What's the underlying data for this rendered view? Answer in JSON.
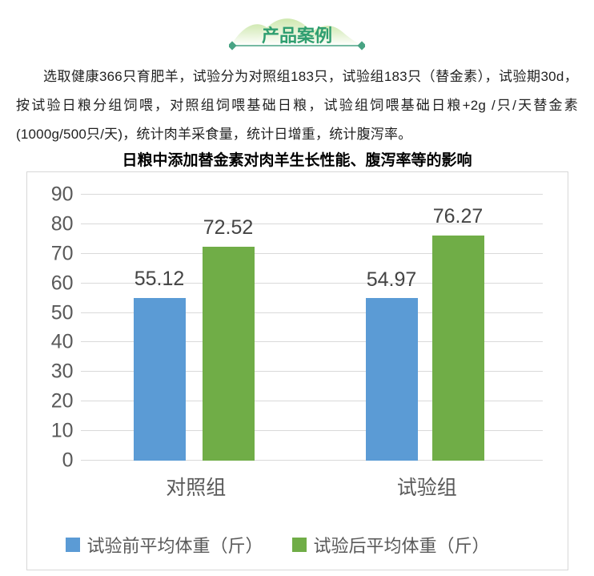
{
  "badge": {
    "label": "产品案例",
    "text_color": "#2F9E70"
  },
  "theme": {
    "accent_green": "#48A383",
    "hill_green": "#c9e5a6"
  },
  "intro": {
    "text": "选取健康366只育肥羊，试验分为对照组183只，试验组183只（替金素），试验期30d，按试验日粮分组饲喂，对照组饲喂基础日粮，试验组饲喂基础日粮+2g /只/天替金素(1000g/500只/天)，统计肉羊采食量，统计日增重，统计腹泻率。"
  },
  "chart_data": {
    "type": "bar",
    "title": "日粮中添加替金素对肉羊生长性能、腹泻率等的影响",
    "categories": [
      "对照组",
      "试验组"
    ],
    "series": [
      {
        "name": "试验前平均体重（斤）",
        "color": "#5B9BD5",
        "values": [
          55.12,
          54.97
        ]
      },
      {
        "name": "试验后平均体重（斤）",
        "color": "#70AD47",
        "values": [
          72.52,
          76.27
        ]
      }
    ],
    "ylim": [
      0,
      90
    ],
    "ytick_step": 10,
    "grid": true,
    "data_labels": true,
    "legend_position": "bottom",
    "colors": {
      "grid": "#d9d9d9",
      "axis_text": "#595959",
      "data_label": "#444444"
    }
  }
}
